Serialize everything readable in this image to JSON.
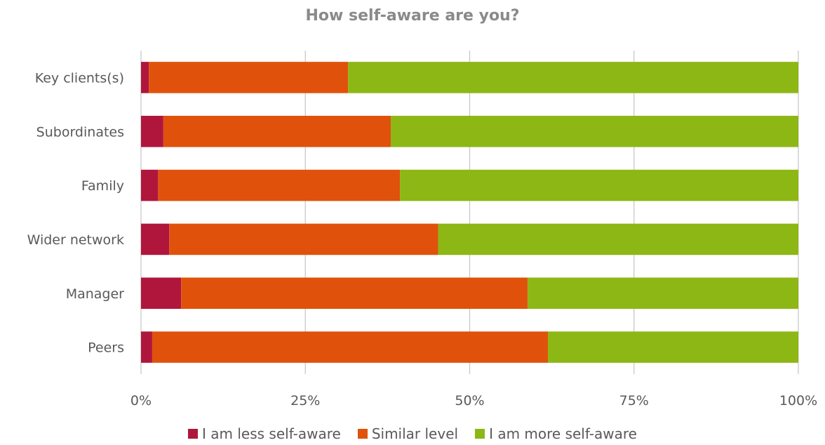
{
  "chart_data": {
    "type": "bar",
    "orientation": "horizontal",
    "stacked": "percent",
    "title": "How self-aware are you?",
    "categories": [
      "Key clients(s)",
      "Subordinates",
      "Family",
      "Wider network",
      "Manager",
      "Peers"
    ],
    "series": [
      {
        "name": "I am less self-aware",
        "color": "#B0163C",
        "values": [
          1.2,
          3.4,
          2.6,
          4.3,
          6.1,
          1.7
        ]
      },
      {
        "name": "Similar level",
        "color": "#E0520C",
        "values": [
          30.3,
          34.6,
          36.8,
          40.9,
          52.7,
          60.2
        ]
      },
      {
        "name": "I am more self-aware",
        "color": "#8DB714",
        "values": [
          68.5,
          62.0,
          60.6,
          54.8,
          41.2,
          38.1
        ]
      }
    ],
    "xlim": [
      0,
      100
    ],
    "xticks": [
      0,
      25,
      50,
      75,
      100
    ],
    "xtick_labels": [
      "0%",
      "25%",
      "50%",
      "75%",
      "100%"
    ],
    "grid": "vertical",
    "legend": "bottom-center"
  }
}
